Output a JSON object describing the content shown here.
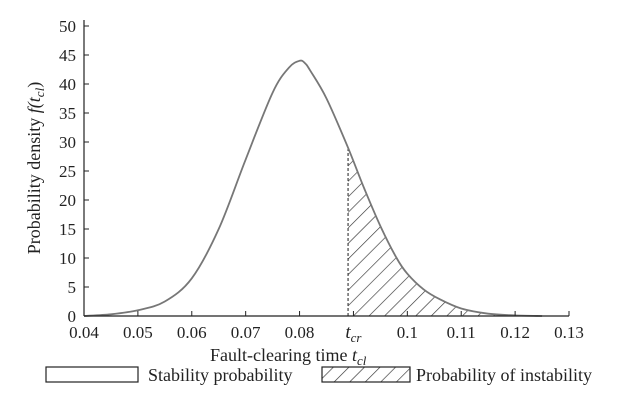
{
  "chart_data": {
    "type": "area",
    "xlabel": "Fault-clearing time ",
    "xlabel_var": "t",
    "xlabel_sub": "cl",
    "ylabel": "Probability density ",
    "ylabel_var": "f",
    "ylabel_arg": "(t",
    "ylabel_sub": "cl",
    "ylabel_close": ")",
    "xlim": [
      0.04,
      0.13
    ],
    "ylim": [
      0,
      50
    ],
    "x_ticks": [
      {
        "value": 0.04,
        "label": "0.04"
      },
      {
        "value": 0.05,
        "label": "0.05"
      },
      {
        "value": 0.06,
        "label": "0.06"
      },
      {
        "value": 0.07,
        "label": "0.07"
      },
      {
        "value": 0.08,
        "label": "0.08"
      },
      {
        "value": 0.09,
        "label": "t",
        "sub": "cr"
      },
      {
        "value": 0.1,
        "label": "0.1"
      },
      {
        "value": 0.11,
        "label": "0.11"
      },
      {
        "value": 0.12,
        "label": "0.12"
      },
      {
        "value": 0.13,
        "label": "0.13"
      }
    ],
    "y_ticks": [
      0,
      5,
      10,
      15,
      20,
      25,
      30,
      35,
      40,
      45,
      50
    ],
    "critical_x": 0.089,
    "series": [
      {
        "x": [
          0.04,
          0.045,
          0.05,
          0.055,
          0.06,
          0.065,
          0.07,
          0.075,
          0.078,
          0.08,
          0.081,
          0.082,
          0.085,
          0.089,
          0.092,
          0.095,
          0.098,
          0.1,
          0.103,
          0.106,
          0.11,
          0.115,
          0.12,
          0.125
        ],
        "y": [
          0.0,
          0.3,
          1.0,
          2.5,
          6.5,
          15.0,
          27.0,
          38.5,
          42.8,
          44.0,
          43.6,
          42.3,
          37.5,
          29.0,
          22.0,
          15.5,
          10.0,
          7.3,
          4.6,
          2.9,
          1.3,
          0.4,
          0.1,
          0.0
        ]
      }
    ],
    "legend": [
      {
        "label": "Stability probability",
        "pattern": "none"
      },
      {
        "label": "Probability of instability",
        "pattern": "hatch"
      }
    ],
    "legend_position": "bottom",
    "grid": false
  }
}
